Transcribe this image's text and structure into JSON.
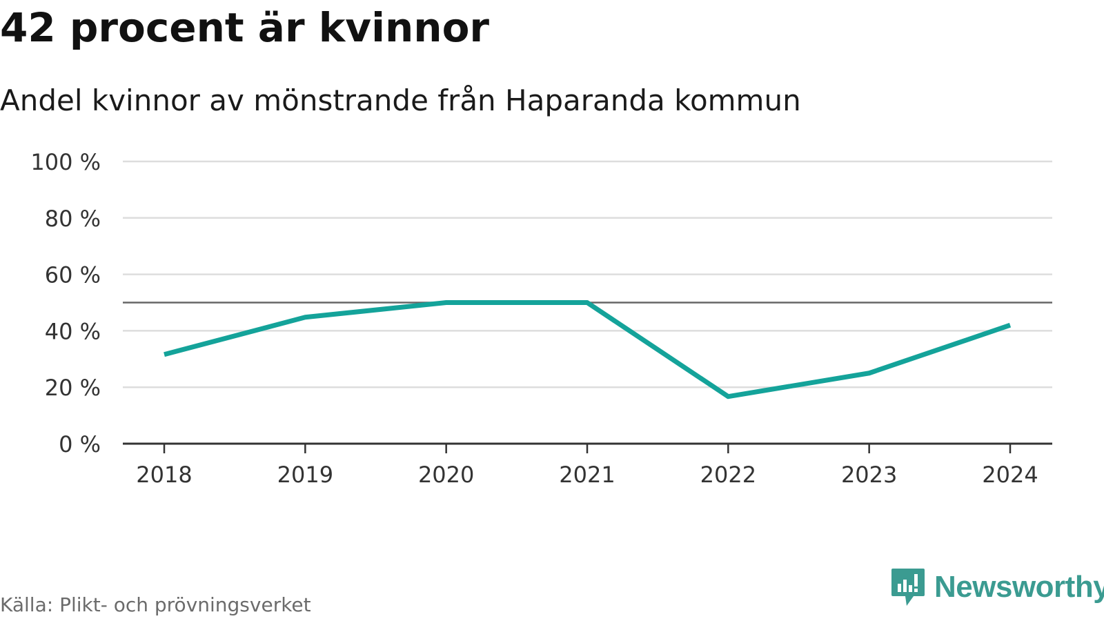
{
  "header": {
    "title": "42 procent är kvinnor",
    "subtitle": "Andel kvinnor av mönstrande från Haparanda kommun"
  },
  "footer": {
    "source": "Källa: Plikt- och prövningsverket",
    "brand": "Newsworthy",
    "brand_icon": "chart-speech-bubble-icon"
  },
  "colors": {
    "line": "#14a39a",
    "reference_line": "#666666",
    "grid": "#dddddd",
    "axis": "#333333",
    "brand": "#3b9b91"
  },
  "chart_data": {
    "type": "line",
    "title": "42 procent är kvinnor",
    "subtitle": "Andel kvinnor av mönstrande från Haparanda kommun",
    "xlabel": "",
    "ylabel": "",
    "categories": [
      "2018",
      "2019",
      "2020",
      "2021",
      "2022",
      "2023",
      "2024"
    ],
    "series": [
      {
        "values": [
          31.6,
          44.8,
          50,
          50,
          16.7,
          25,
          42
        ]
      }
    ],
    "reference_line": 50,
    "ylim": [
      0,
      100
    ],
    "yticks": [
      0,
      20,
      40,
      60,
      80,
      100
    ],
    "ytick_labels": [
      "0 %",
      "20 %",
      "40 %",
      "60 %",
      "80 %",
      "100 %"
    ],
    "grid": true,
    "legend": "none"
  }
}
